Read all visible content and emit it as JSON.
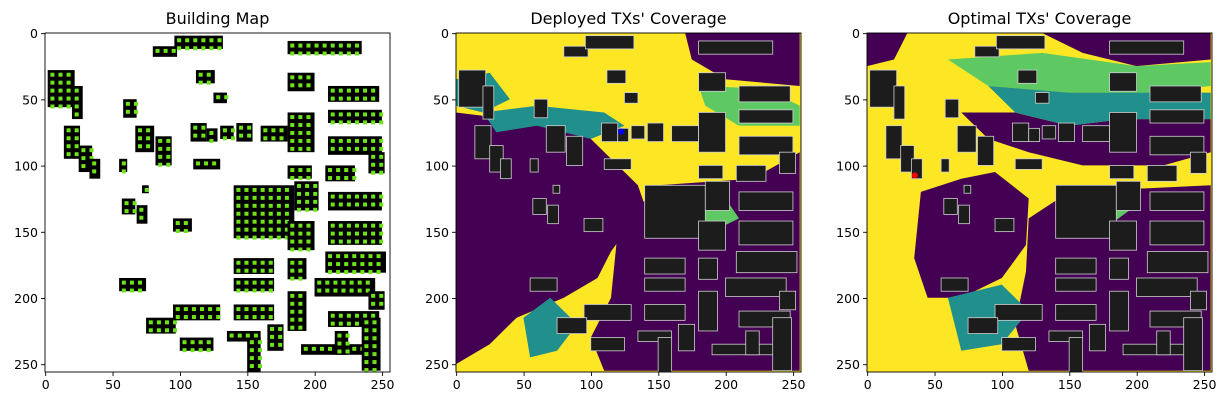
{
  "chart_data": [
    {
      "type": "heatmap",
      "title": "Building Map",
      "xlim": [
        0,
        255
      ],
      "ylim": [
        255,
        0
      ],
      "xticks": [
        0,
        50,
        100,
        150,
        200,
        250
      ],
      "yticks": [
        0,
        50,
        100,
        150,
        200,
        250
      ],
      "colors": {
        "background": "#ffffff",
        "building": "#000000",
        "tx_candidate": "#6ee31a"
      }
    },
    {
      "type": "heatmap",
      "title": "Deployed TXs' Coverage",
      "xlim": [
        0,
        255
      ],
      "ylim": [
        255,
        0
      ],
      "xticks": [
        0,
        50,
        100,
        150,
        200,
        250
      ],
      "yticks": [
        0,
        50,
        100,
        150,
        200,
        250
      ],
      "colormap": [
        "#440154",
        "#21908c",
        "#5ec962",
        "#fde725"
      ],
      "tx_marker": {
        "x": 122,
        "y": 74,
        "color": "#0000ff"
      }
    },
    {
      "type": "heatmap",
      "title": "Optimal TXs' Coverage",
      "xlim": [
        0,
        255
      ],
      "ylim": [
        255,
        0
      ],
      "xticks": [
        0,
        50,
        100,
        150,
        200,
        250
      ],
      "yticks": [
        0,
        50,
        100,
        150,
        200,
        250
      ],
      "colormap": [
        "#440154",
        "#21908c",
        "#5ec962",
        "#fde725"
      ],
      "tx_marker": {
        "x": 35,
        "y": 107,
        "color": "#ff0000"
      }
    }
  ]
}
